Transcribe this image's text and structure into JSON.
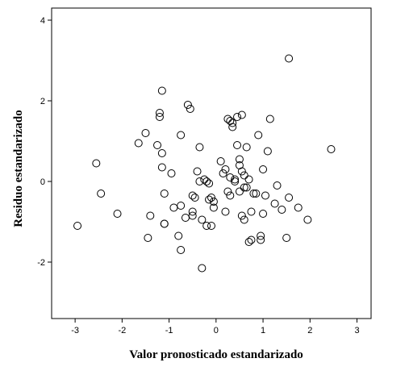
{
  "chart_data": {
    "type": "scatter",
    "title": "",
    "xlabel": "Valor pronosticado estandarizado",
    "ylabel": "Residuo estandarizado",
    "xlim": [
      -3.5,
      3.3
    ],
    "ylim": [
      -3.4,
      4.3
    ],
    "xticks": [
      -3,
      -2,
      -1,
      0,
      1,
      2,
      3
    ],
    "yticks": [
      -2,
      0,
      2,
      4
    ],
    "xtick_labels": [
      "-3",
      "-2",
      "-1",
      "0",
      "1",
      "2",
      "3"
    ],
    "ytick_labels": [
      "-2",
      "0",
      "2",
      "4"
    ],
    "grid": false,
    "legend": "none",
    "marker": "open-circle",
    "series": [
      {
        "x": [
          -2.95,
          -2.55,
          -2.45,
          -2.1,
          -1.65,
          -1.5,
          -1.45,
          -1.4,
          -1.25,
          -1.2,
          -1.2,
          -1.15,
          -1.15,
          -1.15,
          -1.1,
          -1.1,
          -1.1,
          -0.95,
          -0.9,
          -0.8,
          -0.75,
          -0.75,
          -0.75,
          -0.65,
          -0.6,
          -0.55,
          -0.5,
          -0.5,
          -0.5,
          -0.45,
          -0.4,
          -0.35,
          -0.35,
          -0.3,
          -0.3,
          -0.25,
          -0.2,
          -0.15,
          -0.15,
          -0.1,
          -0.1,
          -0.05,
          -0.05,
          0.1,
          0.15,
          0.2,
          0.25,
          0.25,
          0.3,
          0.3,
          0.35,
          0.35,
          0.4,
          0.4,
          0.45,
          0.45,
          0.5,
          0.5,
          0.5,
          0.55,
          0.55,
          0.55,
          0.6,
          0.6,
          0.65,
          0.65,
          0.7,
          0.7,
          0.75,
          0.75,
          0.8,
          0.85,
          0.9,
          0.95,
          0.95,
          1.0,
          1.0,
          1.05,
          1.1,
          1.15,
          1.25,
          1.3,
          1.4,
          1.5,
          1.55,
          1.55,
          1.75,
          1.95,
          2.45,
          0.2,
          -0.2,
          0.3,
          0.6
        ],
        "y": [
          -1.1,
          0.45,
          -0.3,
          -0.8,
          0.95,
          1.2,
          -1.4,
          -0.85,
          0.9,
          1.7,
          1.6,
          2.25,
          0.7,
          0.35,
          -0.3,
          -1.05,
          -1.05,
          0.2,
          -0.65,
          -1.35,
          -1.7,
          1.15,
          -0.6,
          -0.9,
          1.9,
          1.8,
          -0.35,
          -0.75,
          -0.85,
          -0.4,
          0.25,
          0.0,
          0.85,
          -0.95,
          -2.15,
          0.05,
          0.0,
          -0.05,
          -0.45,
          -1.1,
          -0.4,
          -0.5,
          -0.65,
          0.5,
          0.2,
          -0.75,
          1.55,
          -0.25,
          0.1,
          -0.35,
          1.45,
          1.35,
          0.05,
          0.0,
          1.6,
          0.9,
          0.55,
          0.4,
          -0.25,
          0.25,
          1.65,
          -0.85,
          0.15,
          -0.95,
          -0.15,
          0.85,
          -1.5,
          0.05,
          -1.45,
          -0.75,
          -0.3,
          -0.3,
          1.15,
          -1.35,
          -1.45,
          0.3,
          -0.8,
          -0.35,
          0.75,
          1.55,
          -0.55,
          -0.1,
          -0.7,
          -1.4,
          3.05,
          -0.4,
          -0.65,
          -0.95,
          0.8,
          0.3,
          -1.1,
          1.5,
          -0.15
        ]
      }
    ]
  }
}
